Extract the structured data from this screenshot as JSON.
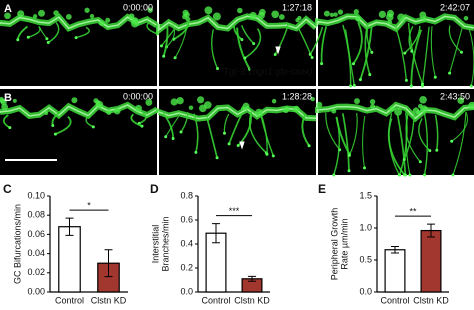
{
  "image_panels": [
    {
      "label": "A",
      "timestamps": [
        "0:00:00",
        "1:27:18",
        "2:42:07"
      ],
      "caption": "Tg(-3.1ngn1:gfp-caax)"
    },
    {
      "label": "B",
      "timestamps": [
        "0:00:00",
        "1:28:28",
        "2:43:50"
      ]
    }
  ],
  "chart_data": [
    {
      "type": "bar",
      "panel_label": "C",
      "ylabel": [
        "GC Bifurcations/min"
      ],
      "categories": [
        "Control",
        "Clstn KD"
      ],
      "values": [
        0.068,
        0.03
      ],
      "errors": [
        0.009,
        0.014
      ],
      "colors": [
        "#ffffff",
        "#a1372f"
      ],
      "significance": "*",
      "ylim": [
        0,
        0.1
      ],
      "yticks": [
        {
          "value": 0,
          "label": "0.00"
        },
        0.02,
        0.04,
        0.06,
        0.08,
        {
          "value": 0.1,
          "label": "0.10"
        }
      ]
    },
    {
      "type": "bar",
      "panel_label": "D",
      "ylabel": [
        "Interstitial",
        "Branches/min"
      ],
      "categories": [
        "Control",
        "Clstn KD"
      ],
      "values": [
        0.49,
        0.11
      ],
      "errors": [
        0.08,
        0.02
      ],
      "colors": [
        "#ffffff",
        "#a1372f"
      ],
      "significance": "***",
      "ylim": [
        0,
        0.8
      ],
      "yticks": [
        {
          "value": 0,
          "label": "0.0"
        },
        0.2,
        0.4,
        0.6,
        0.8
      ]
    },
    {
      "type": "bar",
      "panel_label": "E",
      "ylabel": [
        "Peripheral Growth",
        "Rate µm/min"
      ],
      "categories": [
        "Control",
        "Clstn KD"
      ],
      "values": [
        0.66,
        0.96
      ],
      "errors": [
        0.05,
        0.1
      ],
      "colors": [
        "#ffffff",
        "#a1372f"
      ],
      "significance": "**",
      "ylim": [
        0,
        1.5
      ],
      "yticks": [
        {
          "value": 0,
          "label": "0.0"
        },
        0.5,
        {
          "value": 1,
          "label": "1.0"
        },
        1.5
      ]
    }
  ]
}
